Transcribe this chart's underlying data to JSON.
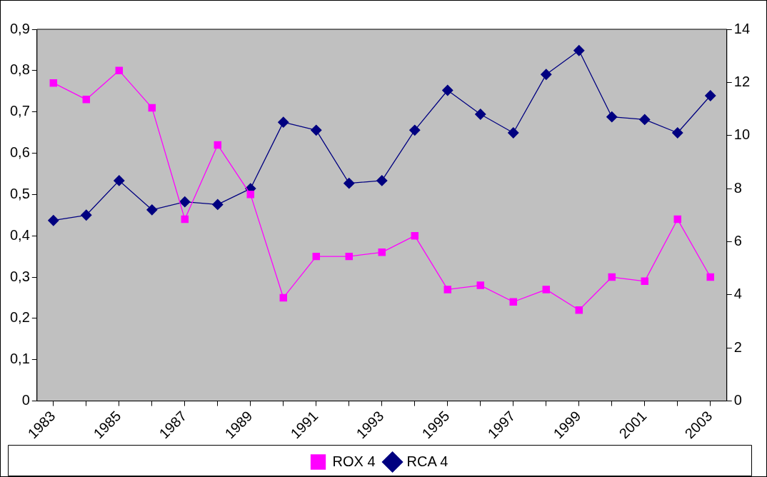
{
  "chart_data": {
    "type": "line",
    "categories": [
      "1983",
      null,
      "1985",
      null,
      "1987",
      null,
      "1989",
      null,
      "1991",
      null,
      "1993",
      null,
      "1995",
      null,
      "1997",
      null,
      "1999",
      null,
      "2001",
      null,
      "2003"
    ],
    "series": [
      {
        "name": "ROX 4",
        "color": "#ff00ff",
        "marker": "square",
        "values": [
          0.77,
          0.73,
          0.8,
          0.71,
          0.44,
          0.62,
          0.5,
          0.25,
          0.35,
          0.35,
          0.36,
          0.4,
          0.27,
          0.28,
          0.24,
          0.27,
          0.22,
          0.3,
          0.29,
          0.44,
          0.3
        ]
      },
      {
        "name": "RCA 4",
        "color": "#000080",
        "marker": "diamond",
        "axis": "y2",
        "values": [
          6.8,
          7.0,
          8.3,
          7.2,
          7.5,
          7.4,
          8.0,
          10.5,
          10.2,
          8.2,
          8.3,
          10.2,
          11.7,
          10.8,
          10.1,
          12.3,
          13.2,
          10.7,
          10.6,
          10.1,
          11.5
        ]
      }
    ],
    "ylim": [
      0,
      0.9
    ],
    "yticks": [
      {
        "value": 0,
        "label": "0"
      },
      {
        "value": 0.1,
        "label": "0,1"
      },
      {
        "value": 0.2,
        "label": "0,2"
      },
      {
        "value": 0.3,
        "label": "0,3"
      },
      {
        "value": 0.4,
        "label": "0,4"
      },
      {
        "value": 0.5,
        "label": "0,5"
      },
      {
        "value": 0.6,
        "label": "0,6"
      },
      {
        "value": 0.7,
        "label": "0,7"
      },
      {
        "value": 0.8,
        "label": "0,8"
      },
      {
        "value": 0.9,
        "label": "0,9"
      }
    ],
    "y2lim": [
      0,
      14
    ],
    "y2ticks": [
      0,
      2,
      4,
      6,
      8,
      10,
      12,
      14
    ],
    "grid": false,
    "legend": "bottom",
    "line_style": "solid"
  }
}
